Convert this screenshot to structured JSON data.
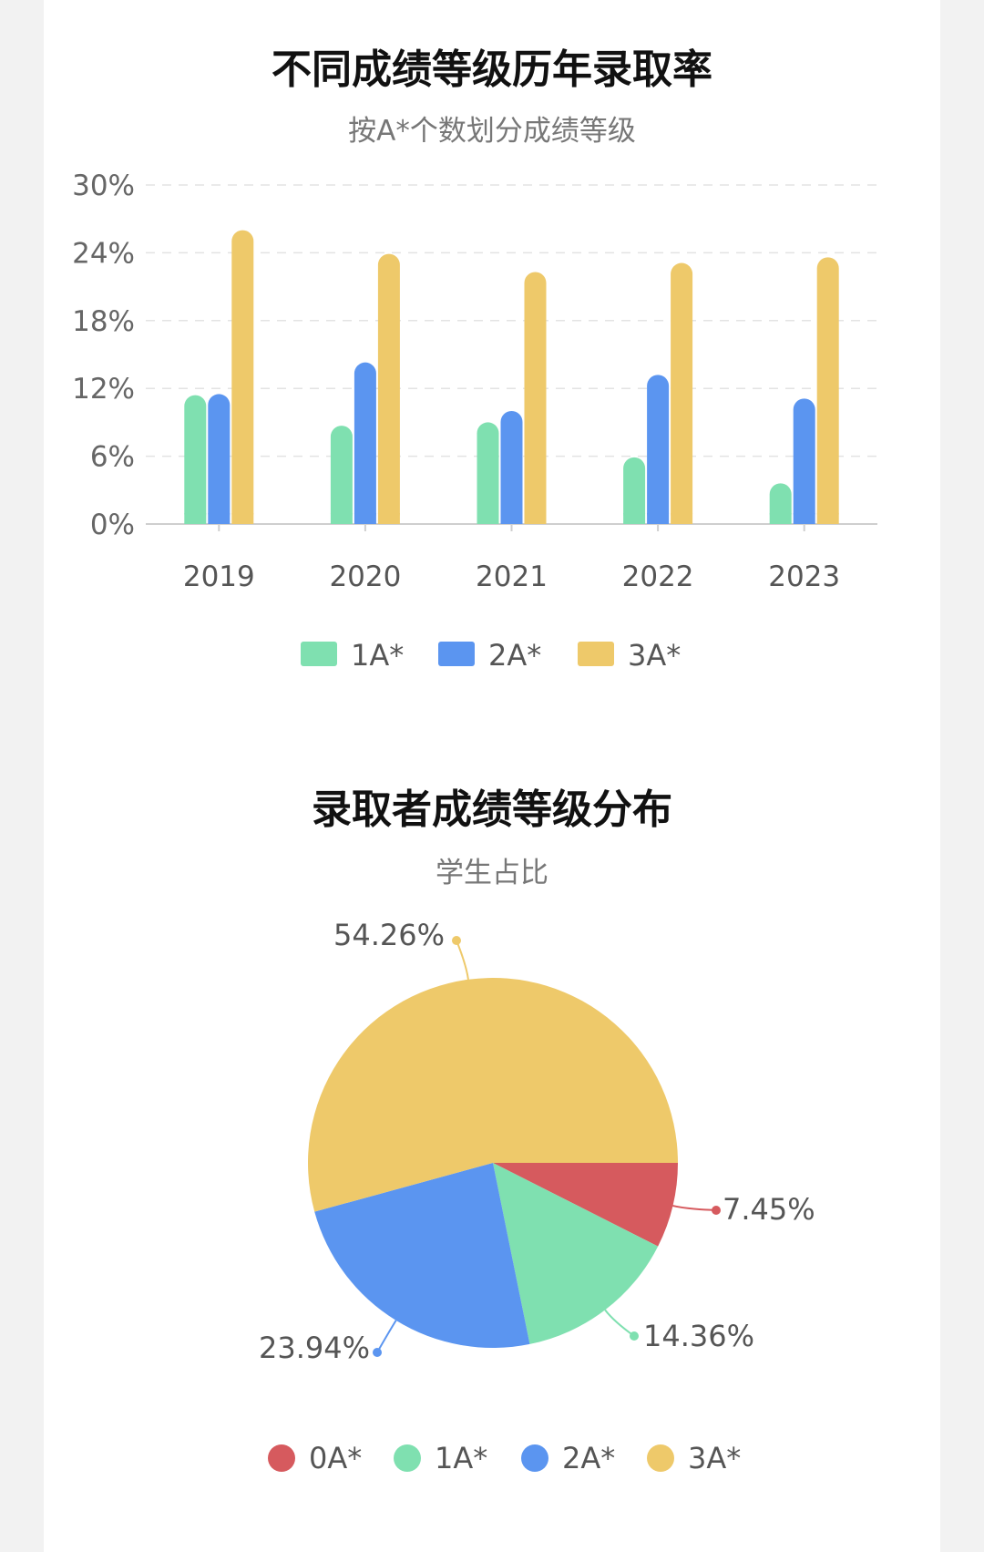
{
  "chart_data": [
    {
      "type": "bar",
      "title": "不同成绩等级历年录取率",
      "subtitle": "按A*个数划分成绩等级",
      "categories": [
        "2019",
        "2020",
        "2021",
        "2022",
        "2023"
      ],
      "series": [
        {
          "name": "1A*",
          "color": "#7fe0b0",
          "values": [
            11.4,
            8.7,
            9.0,
            5.9,
            3.6
          ]
        },
        {
          "name": "2A*",
          "color": "#5b95f0",
          "values": [
            11.5,
            14.3,
            10.0,
            13.2,
            11.1
          ]
        },
        {
          "name": "3A*",
          "color": "#eec96a",
          "values": [
            26.0,
            23.9,
            22.3,
            23.1,
            23.6
          ]
        }
      ],
      "yticks": [
        "0%",
        "6%",
        "12%",
        "18%",
        "24%",
        "30%"
      ],
      "ylim": [
        0,
        30
      ],
      "grid": "dashed horizontal",
      "legend": "bottom"
    },
    {
      "type": "pie",
      "title": "录取者成绩等级分布",
      "subtitle": "学生占比",
      "slices": [
        {
          "name": "0A*",
          "value": 7.45,
          "label": "7.45%",
          "color": "#d65a5e"
        },
        {
          "name": "1A*",
          "value": 14.36,
          "label": "14.36%",
          "color": "#7fe0b0"
        },
        {
          "name": "2A*",
          "value": 23.94,
          "label": "23.94%",
          "color": "#5b95f0"
        },
        {
          "name": "3A*",
          "value": 54.26,
          "label": "54.26%",
          "color": "#eec96a"
        }
      ],
      "legend": "bottom"
    }
  ]
}
